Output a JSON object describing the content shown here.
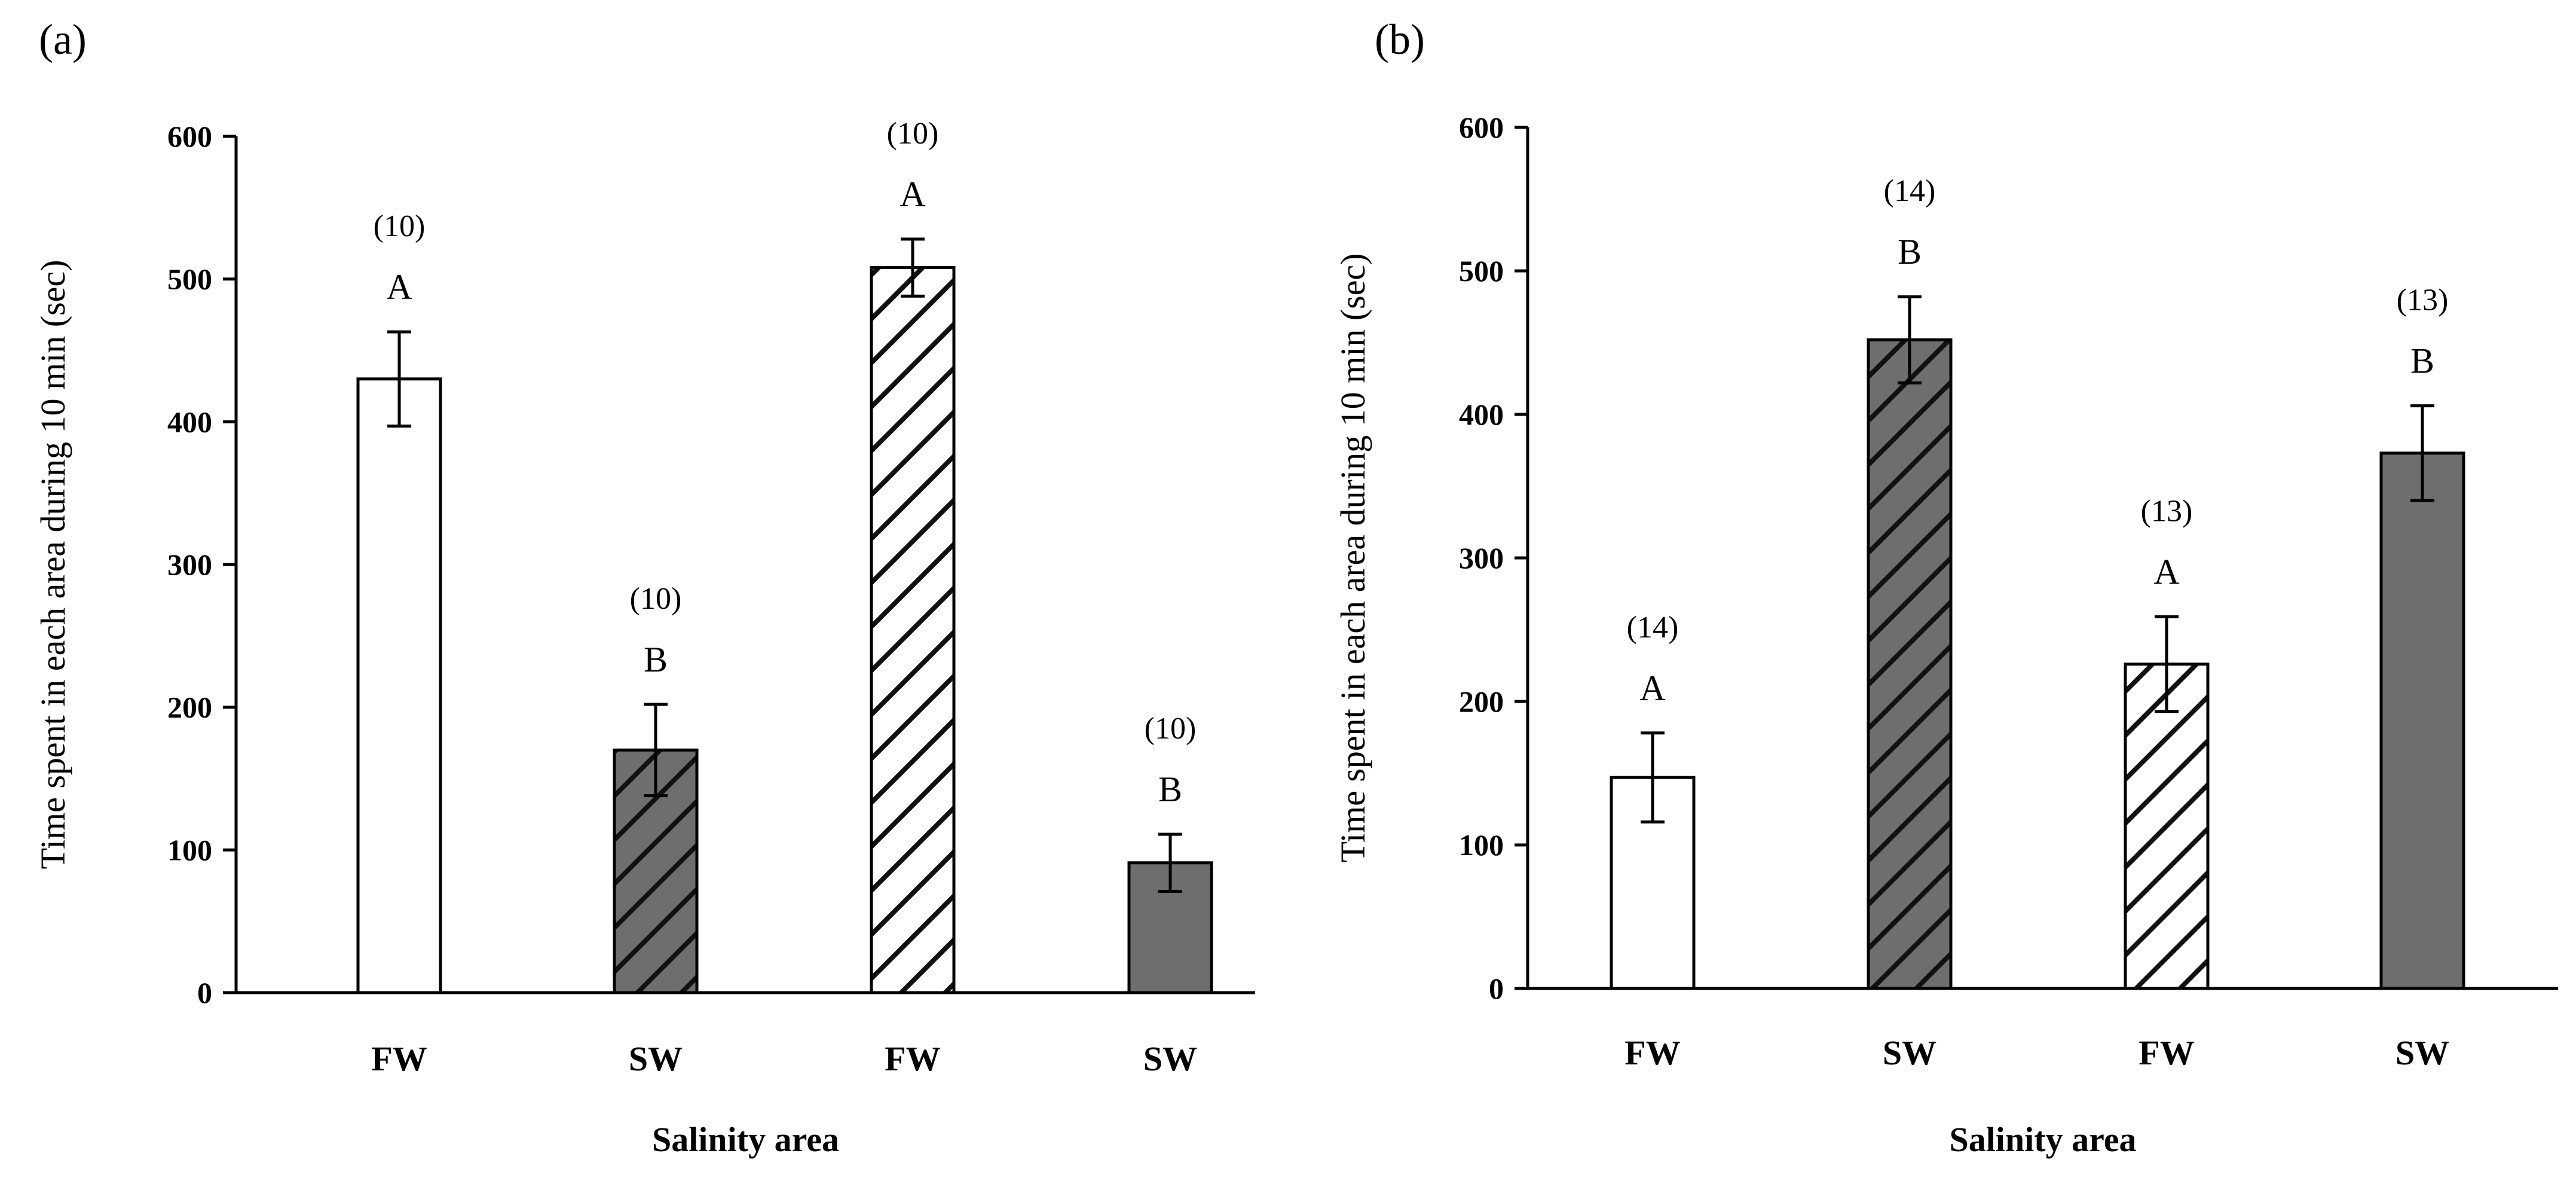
{
  "chart_data": [
    {
      "panel": "(a)",
      "type": "bar",
      "ylabel": "Time spent in each area during 10 min (sec)",
      "xlabel": "Salinity area",
      "ylim": [
        0,
        600
      ],
      "yticks": [
        "0",
        "100",
        "200",
        "300",
        "400",
        "500",
        "600"
      ],
      "bars": [
        {
          "category": "FW",
          "value": 430,
          "error": 33,
          "letter": "A",
          "n": "(10)",
          "fill": "white",
          "hatched": false
        },
        {
          "category": "SW",
          "value": 170,
          "error": 32,
          "letter": "B",
          "n": "(10)",
          "fill": "gray",
          "hatched": true
        },
        {
          "category": "FW",
          "value": 508,
          "error": 20,
          "letter": "A",
          "n": "(10)",
          "fill": "white",
          "hatched": true
        },
        {
          "category": "SW",
          "value": 91,
          "error": 20,
          "letter": "B",
          "n": "(10)",
          "fill": "gray",
          "hatched": false
        }
      ]
    },
    {
      "panel": "(b)",
      "type": "bar",
      "ylabel": "Time spent in each area during 10 min (sec)",
      "xlabel": "Salinity area",
      "ylim": [
        0,
        600
      ],
      "yticks": [
        "0",
        "100",
        "200",
        "300",
        "400",
        "500",
        "600"
      ],
      "bars": [
        {
          "category": "FW",
          "value": 147,
          "error": 31,
          "letter": "A",
          "n": "(14)",
          "fill": "white",
          "hatched": false
        },
        {
          "category": "SW",
          "value": 452,
          "error": 30,
          "letter": "B",
          "n": "(14)",
          "fill": "gray",
          "hatched": true
        },
        {
          "category": "FW",
          "value": 226,
          "error": 33,
          "letter": "A",
          "n": "(13)",
          "fill": "white",
          "hatched": true
        },
        {
          "category": "SW",
          "value": 373,
          "error": 33,
          "letter": "B",
          "n": "(13)",
          "fill": "gray",
          "hatched": false
        }
      ]
    }
  ],
  "colors": {
    "gray_fill": "#6e6e6e",
    "white_fill": "#ffffff",
    "stroke": "#000000",
    "hatch": "#111111"
  }
}
